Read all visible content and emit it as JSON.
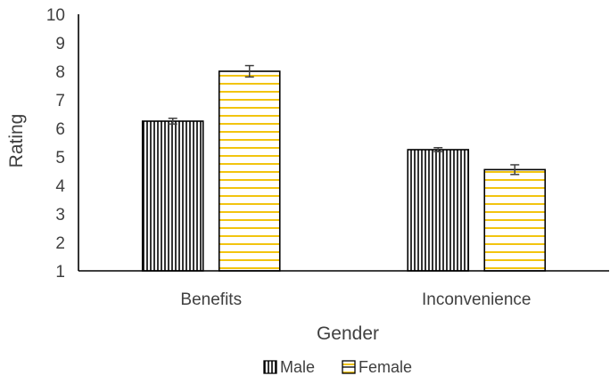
{
  "chart_data": {
    "type": "bar",
    "categories": [
      "Benefits",
      "Inconvenience"
    ],
    "series": [
      {
        "name": "Male",
        "values": [
          6.25,
          5.25
        ],
        "error": [
          0.1,
          0.07
        ],
        "fill": "#ffffff",
        "pattern": "vertical-lines",
        "pattern_color": "#000000"
      },
      {
        "name": "Female",
        "values": [
          8.0,
          4.55
        ],
        "error": [
          0.2,
          0.17
        ],
        "fill": "#ffffff",
        "pattern": "horizontal-lines",
        "pattern_color": "#f2c40f"
      }
    ],
    "xlabel": "Gender",
    "ylabel": "Rating",
    "ylim": [
      1,
      10
    ],
    "yticks": [
      "1",
      "2",
      "3",
      "4",
      "5",
      "6",
      "7",
      "8",
      "9",
      "10"
    ],
    "grid": false,
    "legend_position": "bottom",
    "axis_color": "#000000",
    "text_color": "#404040"
  }
}
